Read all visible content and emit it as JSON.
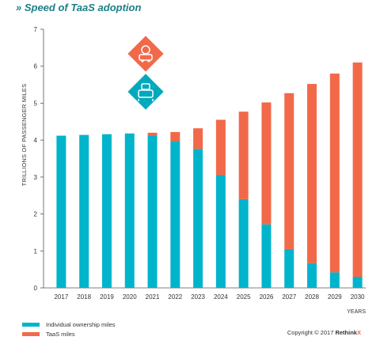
{
  "title": "» Speed of TaaS adoption",
  "icons": [
    "car-autonomy-icon",
    "robot-car-icon"
  ],
  "legend": [
    {
      "label": "Individual ownership miles",
      "color": "#00b4cc"
    },
    {
      "label": "TaaS miles",
      "color": "#f2694a"
    }
  ],
  "copyright": {
    "text": "Copyright © 2017",
    "brand": "Rethink",
    "mark": "X"
  },
  "chart_data": {
    "type": "bar",
    "stacked": true,
    "categories": [
      "2017",
      "2018",
      "2019",
      "2020",
      "2021",
      "2022",
      "2023",
      "2024",
      "2025",
      "2026",
      "2027",
      "2028",
      "2029",
      "2030"
    ],
    "series": [
      {
        "name": "Individual ownership miles",
        "color": "#00b4cc",
        "values": [
          4.12,
          4.14,
          4.16,
          4.18,
          4.12,
          3.97,
          3.76,
          3.05,
          2.4,
          1.72,
          1.05,
          0.67,
          0.42,
          0.3
        ]
      },
      {
        "name": "TaaS miles",
        "color": "#f2694a",
        "values": [
          0,
          0,
          0,
          0,
          0.08,
          0.25,
          0.56,
          1.5,
          2.37,
          3.3,
          4.22,
          4.85,
          5.38,
          5.8
        ]
      }
    ],
    "ylabel": "TRILLIONS OF PASSENGER MILES",
    "xlabel": "YEARS",
    "ylim": [
      0,
      7
    ],
    "yticks": [
      0,
      1,
      2,
      3,
      4,
      5,
      6,
      7
    ],
    "grid": false
  }
}
